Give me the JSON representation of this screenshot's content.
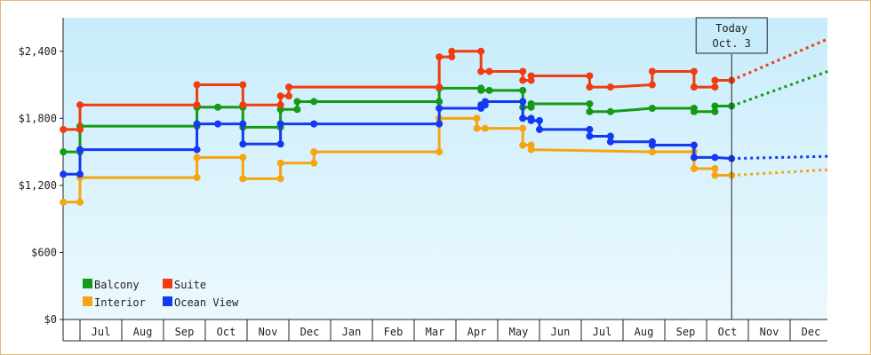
{
  "chart_data": {
    "type": "line",
    "title": "",
    "xlabel": "",
    "ylabel": "",
    "ylim": [
      0,
      2700
    ],
    "y_ticks": [
      "$0",
      "$600",
      "$1,200",
      "$1,800",
      "$2,400"
    ],
    "y_tick_values": [
      0,
      600,
      1200,
      1800,
      2400
    ],
    "month_labels": [
      "Jul",
      "Aug",
      "Sep",
      "Oct",
      "Nov",
      "Dec",
      "Jan",
      "Feb",
      "Mar",
      "Apr",
      "May",
      "Jun",
      "Jul",
      "Aug",
      "Sep",
      "Oct",
      "Nov",
      "Dec"
    ],
    "today_label": [
      "Today",
      "Oct. 3"
    ],
    "today_x": 15.6,
    "grid": false,
    "legend_position": "bottom-left",
    "series": [
      {
        "name": "Balcony",
        "color": "#159a15",
        "points": [
          [
            -0.4,
            1500
          ],
          [
            0.0,
            1500
          ],
          [
            0.0,
            1730
          ],
          [
            2.8,
            1730
          ],
          [
            2.8,
            1900
          ],
          [
            3.3,
            1900
          ],
          [
            3.9,
            1900
          ],
          [
            3.9,
            1720
          ],
          [
            4.8,
            1720
          ],
          [
            4.8,
            1880
          ],
          [
            5.2,
            1880
          ],
          [
            5.2,
            1950
          ],
          [
            5.6,
            1950
          ],
          [
            8.6,
            1950
          ],
          [
            8.6,
            2070
          ],
          [
            9.6,
            2070
          ],
          [
            9.6,
            2050
          ],
          [
            9.8,
            2050
          ],
          [
            10.6,
            2050
          ],
          [
            10.6,
            1900
          ],
          [
            10.8,
            1900
          ],
          [
            10.8,
            1930
          ],
          [
            12.2,
            1930
          ],
          [
            12.2,
            1860
          ],
          [
            12.7,
            1860
          ],
          [
            13.7,
            1890
          ],
          [
            14.7,
            1890
          ],
          [
            14.7,
            1860
          ],
          [
            15.2,
            1860
          ],
          [
            15.2,
            1910
          ],
          [
            15.6,
            1910
          ]
        ],
        "forecast": [
          [
            15.6,
            1910
          ],
          [
            17.9,
            2220
          ]
        ]
      },
      {
        "name": "Suite",
        "color": "#f03c10",
        "points": [
          [
            -0.4,
            1700
          ],
          [
            0.0,
            1700
          ],
          [
            0.0,
            1920
          ],
          [
            2.8,
            1920
          ],
          [
            2.8,
            2100
          ],
          [
            3.9,
            2100
          ],
          [
            3.9,
            1920
          ],
          [
            4.8,
            1920
          ],
          [
            4.8,
            2000
          ],
          [
            5.0,
            2000
          ],
          [
            5.0,
            2080
          ],
          [
            8.6,
            2080
          ],
          [
            8.6,
            2350
          ],
          [
            8.9,
            2350
          ],
          [
            8.9,
            2400
          ],
          [
            9.6,
            2400
          ],
          [
            9.6,
            2220
          ],
          [
            9.8,
            2220
          ],
          [
            10.6,
            2220
          ],
          [
            10.6,
            2140
          ],
          [
            10.8,
            2140
          ],
          [
            10.8,
            2180
          ],
          [
            12.2,
            2180
          ],
          [
            12.2,
            2080
          ],
          [
            12.7,
            2080
          ],
          [
            13.7,
            2100
          ],
          [
            13.7,
            2220
          ],
          [
            14.7,
            2220
          ],
          [
            14.7,
            2080
          ],
          [
            15.2,
            2080
          ],
          [
            15.2,
            2140
          ],
          [
            15.6,
            2140
          ]
        ],
        "forecast": [
          [
            15.6,
            2140
          ],
          [
            17.9,
            2510
          ]
        ]
      },
      {
        "name": "Interior",
        "color": "#f5a512",
        "points": [
          [
            -0.4,
            1050
          ],
          [
            0.0,
            1050
          ],
          [
            0.0,
            1270
          ],
          [
            2.8,
            1270
          ],
          [
            2.8,
            1450
          ],
          [
            3.9,
            1450
          ],
          [
            3.9,
            1260
          ],
          [
            4.8,
            1260
          ],
          [
            4.8,
            1400
          ],
          [
            5.6,
            1400
          ],
          [
            5.6,
            1500
          ],
          [
            8.6,
            1500
          ],
          [
            8.6,
            1800
          ],
          [
            9.5,
            1800
          ],
          [
            9.5,
            1710
          ],
          [
            9.7,
            1710
          ],
          [
            10.6,
            1710
          ],
          [
            10.6,
            1560
          ],
          [
            10.8,
            1560
          ],
          [
            10.8,
            1520
          ],
          [
            13.7,
            1500
          ],
          [
            14.7,
            1500
          ],
          [
            14.7,
            1350
          ],
          [
            15.2,
            1350
          ],
          [
            15.2,
            1290
          ],
          [
            15.6,
            1290
          ]
        ],
        "forecast": [
          [
            15.6,
            1290
          ],
          [
            17.9,
            1340
          ]
        ]
      },
      {
        "name": "Ocean View",
        "color": "#1538f2",
        "points": [
          [
            -0.4,
            1300
          ],
          [
            0.0,
            1300
          ],
          [
            0.0,
            1520
          ],
          [
            2.8,
            1520
          ],
          [
            2.8,
            1750
          ],
          [
            3.3,
            1750
          ],
          [
            3.9,
            1750
          ],
          [
            3.9,
            1570
          ],
          [
            4.8,
            1570
          ],
          [
            4.8,
            1750
          ],
          [
            5.6,
            1750
          ],
          [
            8.6,
            1750
          ],
          [
            8.6,
            1890
          ],
          [
            9.6,
            1890
          ],
          [
            9.6,
            1920
          ],
          [
            9.7,
            1920
          ],
          [
            9.7,
            1950
          ],
          [
            10.6,
            1950
          ],
          [
            10.6,
            1800
          ],
          [
            10.8,
            1800
          ],
          [
            10.8,
            1780
          ],
          [
            11.0,
            1780
          ],
          [
            11.0,
            1700
          ],
          [
            12.2,
            1700
          ],
          [
            12.2,
            1640
          ],
          [
            12.7,
            1640
          ],
          [
            12.7,
            1590
          ],
          [
            13.7,
            1590
          ],
          [
            13.7,
            1560
          ],
          [
            14.7,
            1560
          ],
          [
            14.7,
            1450
          ],
          [
            15.2,
            1450
          ],
          [
            15.6,
            1440
          ]
        ],
        "forecast": [
          [
            15.6,
            1440
          ],
          [
            17.9,
            1460
          ]
        ]
      }
    ]
  }
}
